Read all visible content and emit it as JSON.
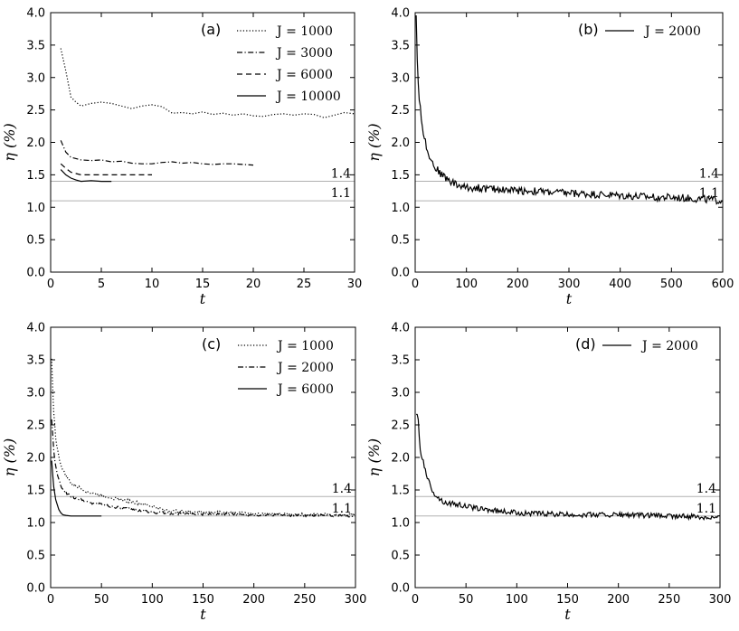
{
  "chart_data": [
    {
      "panel_label": "(a)",
      "type": "line",
      "xlabel": "t",
      "ylabel": "η (%)",
      "xlim": [
        0,
        30
      ],
      "ylim": [
        0,
        4
      ],
      "xticks": [
        "0",
        "5",
        "10",
        "15",
        "20",
        "25",
        "30"
      ],
      "yticks": [
        "0.0",
        "0.5",
        "1.0",
        "1.5",
        "2.0",
        "2.5",
        "3.0",
        "3.5",
        "4.0"
      ],
      "legend_position": "top-right",
      "reference_lines": [
        {
          "y": 1.4,
          "label": "1.4"
        },
        {
          "y": 1.1,
          "label": "1.1"
        }
      ],
      "series": [
        {
          "name": "J = 1000",
          "style": "dotted",
          "x": [
            1,
            1.5,
            2,
            2.5,
            3,
            4,
            5,
            6,
            7,
            8,
            9,
            10,
            11,
            12,
            13,
            14,
            15,
            16,
            17,
            18,
            19,
            20,
            21,
            22,
            23,
            24,
            25,
            26,
            27,
            28,
            29,
            30
          ],
          "y": [
            3.45,
            3.1,
            2.7,
            2.62,
            2.56,
            2.6,
            2.62,
            2.6,
            2.56,
            2.52,
            2.56,
            2.58,
            2.55,
            2.45,
            2.46,
            2.44,
            2.47,
            2.43,
            2.45,
            2.42,
            2.44,
            2.41,
            2.4,
            2.43,
            2.44,
            2.42,
            2.44,
            2.43,
            2.38,
            2.42,
            2.46,
            2.44
          ]
        },
        {
          "name": "J = 3000",
          "style": "dashdot",
          "x": [
            1,
            1.5,
            2,
            3,
            4,
            5,
            6,
            7,
            8,
            9,
            10,
            11,
            12,
            13,
            14,
            15,
            16,
            17,
            18,
            19,
            20
          ],
          "y": [
            2.03,
            1.85,
            1.77,
            1.73,
            1.72,
            1.73,
            1.7,
            1.71,
            1.68,
            1.67,
            1.67,
            1.69,
            1.7,
            1.68,
            1.69,
            1.67,
            1.66,
            1.67,
            1.67,
            1.66,
            1.65
          ]
        },
        {
          "name": "J = 6000",
          "style": "dashed",
          "x": [
            1,
            1.5,
            2,
            3,
            4,
            5,
            6,
            7,
            8,
            9,
            10
          ],
          "y": [
            1.67,
            1.6,
            1.54,
            1.5,
            1.5,
            1.5,
            1.5,
            1.5,
            1.5,
            1.5,
            1.5
          ]
        },
        {
          "name": "J = 10000",
          "style": "solid",
          "x": [
            1,
            1.5,
            2,
            2.5,
            3,
            4,
            5,
            6
          ],
          "y": [
            1.58,
            1.5,
            1.45,
            1.42,
            1.4,
            1.41,
            1.4,
            1.4
          ]
        }
      ]
    },
    {
      "panel_label": "(b)",
      "type": "line",
      "xlabel": "t",
      "ylabel": "η (%)",
      "xlim": [
        0,
        600
      ],
      "ylim": [
        0,
        4
      ],
      "xticks": [
        "0",
        "100",
        "200",
        "300",
        "400",
        "500",
        "600"
      ],
      "yticks": [
        "0.0",
        "0.5",
        "1.0",
        "1.5",
        "2.0",
        "2.5",
        "3.0",
        "3.5",
        "4.0"
      ],
      "legend_position": "top-right",
      "reference_lines": [
        {
          "y": 1.4,
          "label": "1.4"
        },
        {
          "y": 1.1,
          "label": "1.1"
        }
      ],
      "series": [
        {
          "name": "J = 2000",
          "style": "solid",
          "x": [
            2,
            5,
            10,
            15,
            20,
            30,
            40,
            50,
            60,
            70,
            80,
            100,
            120,
            150,
            200,
            250,
            300,
            350,
            400,
            450,
            500,
            550,
            600
          ],
          "y": [
            3.95,
            3.0,
            2.5,
            2.2,
            2.0,
            1.75,
            1.6,
            1.52,
            1.45,
            1.4,
            1.35,
            1.3,
            1.3,
            1.28,
            1.26,
            1.24,
            1.22,
            1.2,
            1.18,
            1.16,
            1.15,
            1.13,
            1.1
          ],
          "noise": 0.06
        }
      ]
    },
    {
      "panel_label": "(c)",
      "type": "line",
      "xlabel": "t",
      "ylabel": "η (%)",
      "xlim": [
        0,
        300
      ],
      "ylim": [
        0,
        4
      ],
      "xticks": [
        "0",
        "50",
        "100",
        "150",
        "200",
        "250",
        "300"
      ],
      "yticks": [
        "0.0",
        "0.5",
        "1.0",
        "1.5",
        "2.0",
        "2.5",
        "3.0",
        "3.5",
        "4.0"
      ],
      "legend_position": "top-right",
      "reference_lines": [
        {
          "y": 1.4,
          "label": "1.4"
        },
        {
          "y": 1.1,
          "label": "1.1"
        }
      ],
      "series": [
        {
          "name": "J = 1000",
          "style": "dotted",
          "x": [
            1,
            3,
            5,
            8,
            12,
            20,
            30,
            40,
            50,
            60,
            70,
            80,
            90,
            100,
            110,
            120,
            150,
            200,
            250,
            300
          ],
          "y": [
            3.5,
            2.7,
            2.3,
            2.0,
            1.8,
            1.6,
            1.52,
            1.45,
            1.42,
            1.38,
            1.35,
            1.32,
            1.28,
            1.25,
            1.2,
            1.18,
            1.16,
            1.14,
            1.12,
            1.12
          ],
          "noise": 0.025
        },
        {
          "name": "J = 2000",
          "style": "dashdot",
          "x": [
            1,
            3,
            5,
            8,
            12,
            20,
            30,
            40,
            50,
            60,
            70,
            80,
            90,
            100,
            110,
            120,
            150,
            200,
            250,
            300
          ],
          "y": [
            2.6,
            2.1,
            1.85,
            1.65,
            1.5,
            1.4,
            1.35,
            1.3,
            1.28,
            1.25,
            1.22,
            1.2,
            1.18,
            1.16,
            1.15,
            1.14,
            1.13,
            1.12,
            1.11,
            1.1
          ],
          "noise": 0.02
        },
        {
          "name": "J = 6000",
          "style": "solid",
          "x": [
            1,
            2,
            3,
            5,
            8,
            10,
            12,
            15,
            20,
            30,
            40,
            50
          ],
          "y": [
            1.95,
            1.75,
            1.55,
            1.35,
            1.2,
            1.15,
            1.12,
            1.11,
            1.1,
            1.1,
            1.1,
            1.1
          ]
        }
      ]
    },
    {
      "panel_label": "(d)",
      "type": "line",
      "xlabel": "t",
      "ylabel": "η (%)",
      "xlim": [
        0,
        300
      ],
      "ylim": [
        0,
        4
      ],
      "xticks": [
        "0",
        "50",
        "100",
        "150",
        "200",
        "250",
        "300"
      ],
      "yticks": [
        "0.0",
        "0.5",
        "1.0",
        "1.5",
        "2.0",
        "2.5",
        "3.0",
        "3.5",
        "4.0"
      ],
      "legend_position": "top-right",
      "reference_lines": [
        {
          "y": 1.4,
          "label": "1.4"
        },
        {
          "y": 1.1,
          "label": "1.1"
        }
      ],
      "series": [
        {
          "name": "J = 2000",
          "style": "solid",
          "x": [
            1,
            3,
            5,
            8,
            10,
            15,
            20,
            25,
            30,
            40,
            50,
            60,
            70,
            80,
            100,
            150,
            200,
            250,
            300
          ],
          "y": [
            2.7,
            2.55,
            2.1,
            1.95,
            1.8,
            1.55,
            1.42,
            1.35,
            1.3,
            1.28,
            1.25,
            1.22,
            1.2,
            1.18,
            1.15,
            1.12,
            1.12,
            1.1,
            1.08
          ],
          "noise": 0.04
        }
      ]
    }
  ]
}
